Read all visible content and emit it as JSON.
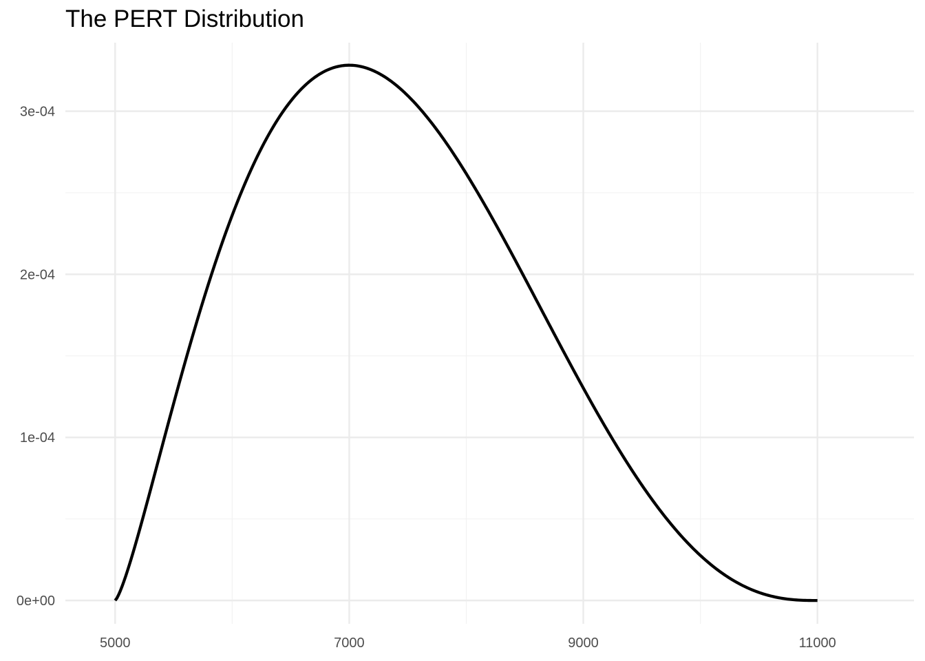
{
  "title": "The PERT Distribution",
  "chart_data": {
    "type": "line",
    "title": "The PERT Distribution",
    "xlabel": "",
    "ylabel": "",
    "distribution": {
      "min": 5000,
      "mode": 7000,
      "max": 11000
    },
    "xlim": [
      4575,
      11825
    ],
    "ylim": [
      -1.43e-05,
      0.000342
    ],
    "x_ticks": [
      5000,
      7000,
      9000,
      11000
    ],
    "x_tick_labels": [
      "5000",
      "7000",
      "9000",
      "11000"
    ],
    "x_minor_ticks": [
      6000,
      8000,
      10000
    ],
    "y_ticks": [
      0,
      0.0001,
      0.0002,
      0.0003
    ],
    "y_tick_labels": [
      "0e+00",
      "1e-04",
      "2e-04",
      "3e-04"
    ],
    "y_minor_ticks": [
      5e-05,
      0.00015,
      0.00025
    ],
    "grid": true,
    "legend": "none",
    "series": [
      {
        "x": [
          5000,
          5200,
          5400,
          5600,
          5800,
          6000,
          6200,
          6400,
          6600,
          6800,
          7000,
          7200,
          7400,
          7600,
          7800,
          8000,
          8200,
          8400,
          8600,
          8800,
          9000,
          9200,
          9400,
          9600,
          9800,
          10000,
          10200,
          10400,
          10600,
          10800,
          11000
        ],
        "y": [
          0,
          5.27e-05,
          0.0001063,
          0.0001563,
          0.0002001,
          0.0002361,
          0.0002778,
          0.0003036,
          0.0003214,
          0.0003265,
          0.0003281,
          0.0003222,
          0.0003097,
          0.0002916,
          0.0002685,
          0.0002415,
          0.0002118,
          0.0001807,
          0.0001495,
          0.0001197,
          9.22e-05,
          6.8e-05,
          4.76e-05,
          3.12e-05,
          1.88e-05,
          1e-05,
          4.5e-06,
          1.5e-06,
          3e-07,
          2e-08,
          0
        ]
      }
    ],
    "colors": {
      "line": "#000000",
      "grid_major": "#ebebeb",
      "grid_minor": "#f2f2f2",
      "tick_text": "#4d4d4d"
    }
  }
}
